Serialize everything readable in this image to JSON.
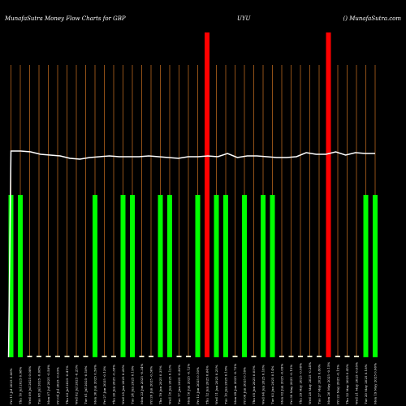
{
  "header": {
    "left": "MunafaSutra  Money Flow  Charts for GBP",
    "center": "UYU",
    "right": "() MunafaSutra.com"
  },
  "chart_data": {
    "type": "bar",
    "title": "MunafaSutra  Money Flow  Charts for GBP",
    "categories": [
      "Fri 11 Jul 2025 0.06%",
      "Thu 10 Jul 2025 0.98%",
      "Wed 09 Jul 2025 0.08%",
      "Tue 08 Jul 2025 -0.08%",
      "Mon 07 Jul 2025 -0.58%",
      "Fri 04 Jul 2025 -0.03%",
      "Thu 03 Jul 2025 -0.41%",
      "Wed 02 Jul 2025 -0.25%",
      "Tue 01 Jul 2025 -0.18%",
      "Mon 30 Jun 2025 0.50%",
      "Fri 27 Jun 2025 -0.13%",
      "Thu 26 Jun 2025 -0.38%",
      "Wed 25 Jun 2025 0.29%",
      "Tue 24 Jun 2025 0.19%",
      "Mon 23 Jun 2025 -0.34%",
      "Fri 20 Jun 2025 -0.36%",
      "Thu 19 Jun 2025 0.35%",
      "Wed 18 Jun 2025 0.12%",
      "Tue 17 Jun 2025 -0.38%",
      "Mon 16 Jun 2025 -0.12%",
      "Fri 13 Jun 2025 0.10%",
      "Thu 12 Jun 2025 0.64%",
      "Wed 11 Jun 2025 0.25%",
      "Tue 10 Jun 2025 0.19%",
      "Mon 09 Jun 2025 -0.72%",
      "Fri 06 Jun 2025 0.18%",
      "Thu 05 Jun 2025 0.05%",
      "Wed 04 Jun 2025 0.18%",
      "Tue 03 Jun 2025 0.14%",
      "Mon 02 Jun 2025 -0.09%",
      "Fri 30 May 2025 -0.15%",
      "Thu 29 May 2025 -0.08%",
      "Wed 28 May 2025 -0.24%",
      "Tue 27 May 2025 0.80%",
      "Mon 26 May 2025 -0.15%",
      "Fri 23 May 2025 -0.15%",
      "Thu 22 May 2025 0.45%",
      "Wed 21 May 2025 -0.65%",
      "Tue 20 May 2025 0.18%",
      "Mon 19 May 2025 0.06%"
    ],
    "bars": [
      {
        "value": 200,
        "color": "#00ff00"
      },
      {
        "value": 200,
        "color": "#00ff00"
      },
      {
        "value": 2,
        "color": "#e8e8c8"
      },
      {
        "value": 2,
        "color": "#e8e8c8"
      },
      {
        "value": 2,
        "color": "#e8e8c8"
      },
      {
        "value": 2,
        "color": "#e8e8c8"
      },
      {
        "value": 2,
        "color": "#e8e8c8"
      },
      {
        "value": 2,
        "color": "#e8e8c8"
      },
      {
        "value": 2,
        "color": "#e8e8c8"
      },
      {
        "value": 200,
        "color": "#00ff00"
      },
      {
        "value": 2,
        "color": "#e8e8c8"
      },
      {
        "value": 2,
        "color": "#e8e8c8"
      },
      {
        "value": 200,
        "color": "#00ff00"
      },
      {
        "value": 200,
        "color": "#00ff00"
      },
      {
        "value": 2,
        "color": "#e8e8c8"
      },
      {
        "value": 2,
        "color": "#e8e8c8"
      },
      {
        "value": 200,
        "color": "#00ff00"
      },
      {
        "value": 200,
        "color": "#00ff00"
      },
      {
        "value": 2,
        "color": "#e8e8c8"
      },
      {
        "value": 2,
        "color": "#e8e8c8"
      },
      {
        "value": 200,
        "color": "#00ff00"
      },
      {
        "value": 400,
        "color": "#ff0000"
      },
      {
        "value": 200,
        "color": "#00ff00"
      },
      {
        "value": 200,
        "color": "#00ff00"
      },
      {
        "value": 2,
        "color": "#e8e8c8"
      },
      {
        "value": 200,
        "color": "#00ff00"
      },
      {
        "value": 2,
        "color": "#e8e8c8"
      },
      {
        "value": 200,
        "color": "#00ff00"
      },
      {
        "value": 200,
        "color": "#00ff00"
      },
      {
        "value": 2,
        "color": "#e8e8c8"
      },
      {
        "value": 2,
        "color": "#e8e8c8"
      },
      {
        "value": 2,
        "color": "#e8e8c8"
      },
      {
        "value": 2,
        "color": "#e8e8c8"
      },
      {
        "value": 2,
        "color": "#e8e8c8"
      },
      {
        "value": 400,
        "color": "#ff0000"
      },
      {
        "value": 2,
        "color": "#e8e8c8"
      },
      {
        "value": 2,
        "color": "#e8e8c8"
      },
      {
        "value": 2,
        "color": "#e8e8c8"
      },
      {
        "value": 200,
        "color": "#00ff00"
      },
      {
        "value": 200,
        "color": "#00ff00"
      }
    ],
    "line": {
      "color": "#ffffff",
      "start": 0,
      "values": [
        254,
        254,
        253,
        250,
        249,
        248,
        245,
        244,
        246,
        247,
        248,
        247,
        247,
        247,
        248,
        247,
        246,
        245,
        247,
        247,
        248,
        247,
        251,
        246,
        248,
        248,
        247,
        246,
        246,
        247,
        252,
        250,
        250,
        253,
        249,
        252,
        251,
        251
      ]
    },
    "ylim": [
      0,
      400
    ],
    "colors": {
      "background": "#000000",
      "gridline": "#b5651d",
      "up": "#00ff00",
      "down_big": "#ff0000",
      "flat": "#e8e8c8"
    },
    "grid": true,
    "legend": "none"
  }
}
